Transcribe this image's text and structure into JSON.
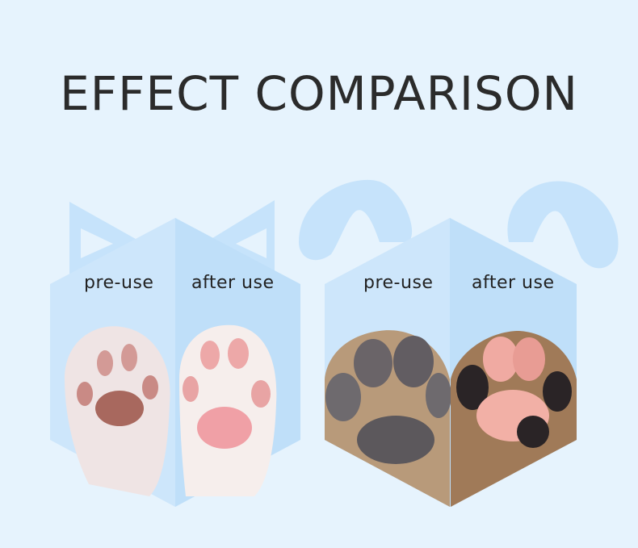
{
  "title": "EFFECT COMPARISON",
  "colors": {
    "background": "#e6f3fd",
    "panel_left": "#cde6fb",
    "panel_right": "#bfdff9",
    "ears": "#c6e3fb",
    "title": "#2b2b2b"
  },
  "panels": [
    {
      "subject": "cat",
      "labels": {
        "before": "pre-use",
        "after": "after use"
      }
    },
    {
      "subject": "dog",
      "labels": {
        "before": "pre-use",
        "after": "after use"
      }
    }
  ]
}
